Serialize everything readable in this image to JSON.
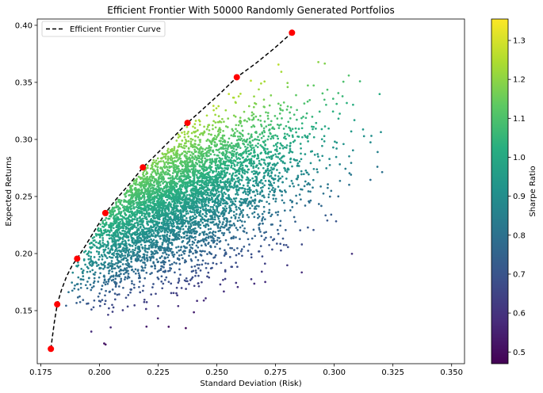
{
  "chart_data": {
    "type": "scatter",
    "title": "Efficient Frontier With 50000 Randomly Generated Portfolios",
    "xlabel": "Standard Deviation (Risk)",
    "ylabel": "Expected Returns",
    "xlim": [
      0.1735,
      0.3555
    ],
    "ylim": [
      0.1035,
      0.4055
    ],
    "x_ticks": [
      "0.175",
      "0.200",
      "0.225",
      "0.250",
      "0.275",
      "0.300",
      "0.325",
      "0.350"
    ],
    "x_tick_values": [
      0.175,
      0.2,
      0.225,
      0.25,
      0.275,
      0.3,
      0.325,
      0.35
    ],
    "y_ticks": [
      "0.15",
      "0.20",
      "0.25",
      "0.30",
      "0.35",
      "0.40"
    ],
    "y_tick_values": [
      0.15,
      0.2,
      0.25,
      0.3,
      0.35,
      0.4
    ],
    "grid": false,
    "legend": {
      "position": "top-left",
      "entries": [
        "Efficient Frontier Curve"
      ]
    },
    "colorbar": {
      "label": "Sharpe Ratio",
      "colormap": "viridis",
      "range": [
        0.47,
        1.355
      ],
      "ticks": [
        "0.5",
        "0.6",
        "0.7",
        "0.8",
        "0.9",
        "1.0",
        "1.1",
        "1.2",
        "1.3"
      ],
      "tick_values": [
        0.5,
        0.6,
        0.7,
        0.8,
        0.9,
        1.0,
        1.1,
        1.2,
        1.3
      ]
    },
    "series": [
      {
        "name": "Efficient Frontier Curve",
        "kind": "dashed-line",
        "color": "#000000",
        "x": [
          0.1793,
          0.1798,
          0.1808,
          0.182,
          0.1838,
          0.186,
          0.1885,
          0.1905,
          0.1945,
          0.1985,
          0.2025,
          0.2075,
          0.213,
          0.2185,
          0.2245,
          0.231,
          0.2375,
          0.244,
          0.2515,
          0.2585,
          0.2665,
          0.274,
          0.282
        ],
        "y": [
          0.1165,
          0.125,
          0.14,
          0.1555,
          0.168,
          0.18,
          0.19,
          0.1955,
          0.2085,
          0.222,
          0.2355,
          0.2485,
          0.2615,
          0.2755,
          0.2875,
          0.301,
          0.3145,
          0.3265,
          0.3405,
          0.3545,
          0.3665,
          0.379,
          0.3935
        ]
      },
      {
        "name": "",
        "kind": "markers",
        "color": "#ff0000",
        "x": [
          0.1793,
          0.182,
          0.1905,
          0.2025,
          0.2185,
          0.2375,
          0.2585,
          0.282
        ],
        "y": [
          0.1165,
          0.1555,
          0.1955,
          0.2355,
          0.2755,
          0.3145,
          0.3545,
          0.3935
        ]
      }
    ],
    "portfolio_count": 50000
  }
}
